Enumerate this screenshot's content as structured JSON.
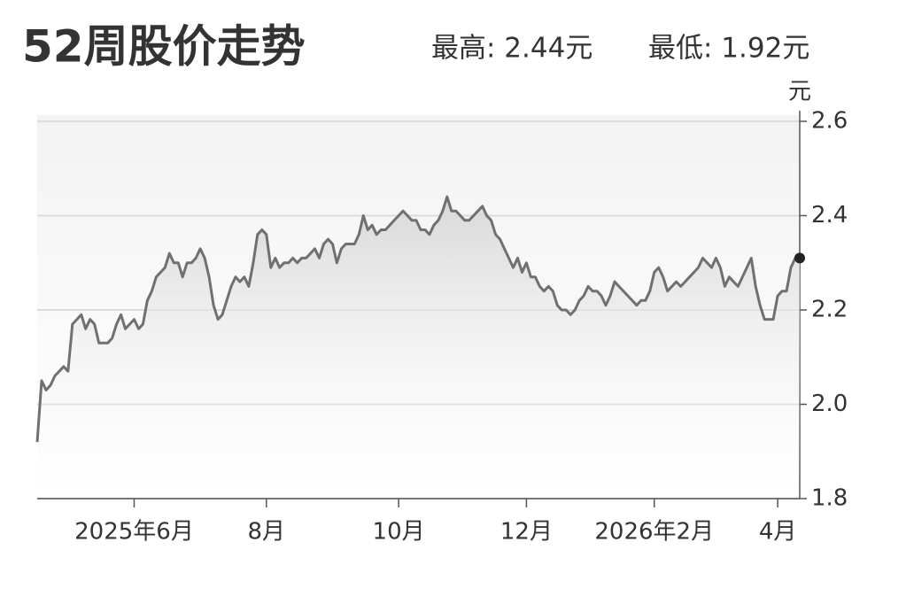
{
  "chart_data": {
    "type": "line",
    "title": "52周股价走势",
    "high_label": "最高: 2.44元",
    "low_label": "最低: 1.92元",
    "y_unit": "元",
    "color": "#707070",
    "grid": true,
    "xlim": [
      0,
      173
    ],
    "xticks": [
      {
        "value": 22,
        "label": "2025年6月"
      },
      {
        "value": 52,
        "label": "8月"
      },
      {
        "value": 82,
        "label": "10月"
      },
      {
        "value": 111,
        "label": "12月"
      },
      {
        "value": 140,
        "label": "2026年2月"
      },
      {
        "value": 168,
        "label": "4月"
      }
    ],
    "ylim": [
      1.8,
      2.6
    ],
    "yticks": [
      1.8,
      {
        "value": 2,
        "label": "2.0"
      },
      2.2,
      2.4,
      2.6
    ],
    "values": [
      1.92,
      2.05,
      2.03,
      2.04,
      2.06,
      2.07,
      2.08,
      2.07,
      2.17,
      2.18,
      2.19,
      2.16,
      2.18,
      2.17,
      2.13,
      2.13,
      2.13,
      2.14,
      2.17,
      2.19,
      2.16,
      2.17,
      2.18,
      2.16,
      2.17,
      2.22,
      2.24,
      2.27,
      2.28,
      2.29,
      2.32,
      2.3,
      2.3,
      2.27,
      2.3,
      2.3,
      2.31,
      2.33,
      2.31,
      2.27,
      2.21,
      2.18,
      2.19,
      2.22,
      2.25,
      2.27,
      2.26,
      2.27,
      2.25,
      2.3,
      2.36,
      2.37,
      2.36,
      2.29,
      2.31,
      2.29,
      2.3,
      2.3,
      2.31,
      2.3,
      2.31,
      2.31,
      2.32,
      2.33,
      2.31,
      2.34,
      2.35,
      2.34,
      2.3,
      2.33,
      2.34,
      2.34,
      2.34,
      2.36,
      2.4,
      2.37,
      2.38,
      2.36,
      2.37,
      2.37,
      2.38,
      2.39,
      2.4,
      2.41,
      2.4,
      2.39,
      2.39,
      2.37,
      2.37,
      2.36,
      2.38,
      2.39,
      2.41,
      2.44,
      2.41,
      2.41,
      2.4,
      2.39,
      2.39,
      2.4,
      2.41,
      2.42,
      2.4,
      2.39,
      2.36,
      2.35,
      2.33,
      2.31,
      2.29,
      2.31,
      2.28,
      2.3,
      2.27,
      2.27,
      2.25,
      2.24,
      2.25,
      2.24,
      2.21,
      2.2,
      2.2,
      2.19,
      2.2,
      2.22,
      2.23,
      2.25,
      2.24,
      2.24,
      2.23,
      2.21,
      2.23,
      2.26,
      2.25,
      2.24,
      2.23,
      2.22,
      2.21,
      2.22,
      2.22,
      2.24,
      2.28,
      2.29,
      2.27,
      2.24,
      2.25,
      2.26,
      2.25,
      2.26,
      2.27,
      2.28,
      2.29,
      2.31,
      2.3,
      2.29,
      2.31,
      2.29,
      2.25,
      2.27,
      2.26,
      2.25,
      2.27,
      2.29,
      2.31,
      2.25,
      2.21,
      2.18,
      2.18,
      2.18,
      2.23,
      2.24,
      2.24,
      2.29,
      2.31,
      2.31
    ]
  }
}
